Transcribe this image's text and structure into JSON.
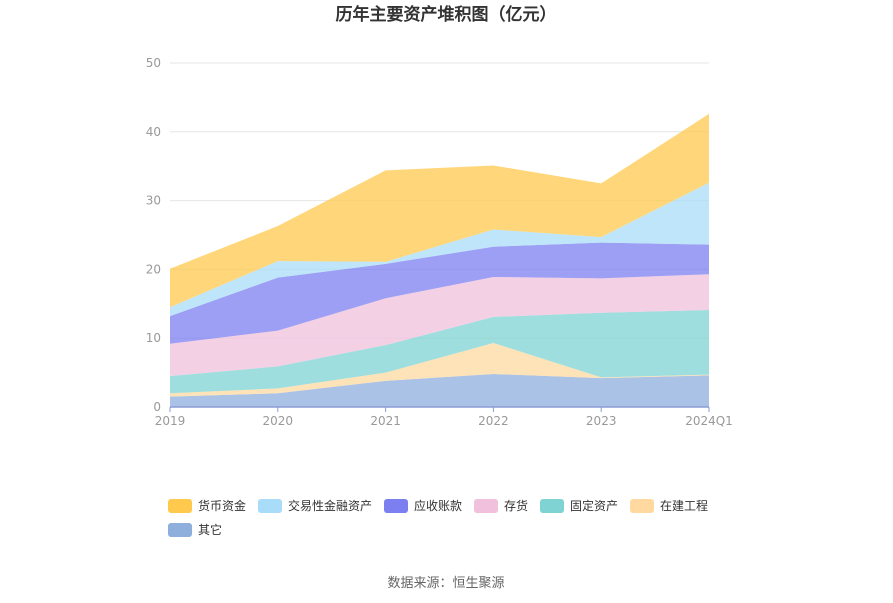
{
  "chart_data": {
    "type": "area",
    "stacked": true,
    "title": "历年主要资产堆积图（亿元）",
    "categories": [
      "2019",
      "2020",
      "2021",
      "2022",
      "2023",
      "2024Q1"
    ],
    "ylim": [
      0,
      50
    ],
    "yticks": [
      0,
      10,
      20,
      30,
      40,
      50
    ],
    "grid": true,
    "legend_position": "bottom",
    "series": [
      {
        "name": "其它",
        "color": "#8eaedc",
        "values": [
          1.5,
          2.0,
          3.8,
          4.8,
          4.2,
          4.6
        ]
      },
      {
        "name": "在建工程",
        "color": "#ffd9a0",
        "values": [
          0.5,
          0.7,
          1.2,
          4.5,
          0.1,
          0.1
        ]
      },
      {
        "name": "固定资产",
        "color": "#7fd3d3",
        "values": [
          2.5,
          3.2,
          4.0,
          3.8,
          9.4,
          9.4
        ]
      },
      {
        "name": "存货",
        "color": "#f0c0dc",
        "values": [
          4.7,
          5.2,
          6.8,
          5.8,
          5.0,
          5.2
        ]
      },
      {
        "name": "应收账款",
        "color": "#7b7ff0",
        "values": [
          4.0,
          7.7,
          5.0,
          4.4,
          5.2,
          4.3
        ]
      },
      {
        "name": "交易性金融资产",
        "color": "#a8dcf8",
        "values": [
          1.3,
          2.4,
          0.3,
          2.5,
          0.8,
          9.0
        ]
      },
      {
        "name": "货币资金",
        "color": "#ffc94d",
        "values": [
          5.6,
          5.1,
          13.3,
          9.3,
          7.8,
          10.0
        ]
      }
    ],
    "legend_order": [
      "货币资金",
      "交易性金融资产",
      "应收账款",
      "存货",
      "固定资产",
      "在建工程",
      "其它"
    ]
  },
  "footer": {
    "source": "数据来源：恒生聚源"
  }
}
